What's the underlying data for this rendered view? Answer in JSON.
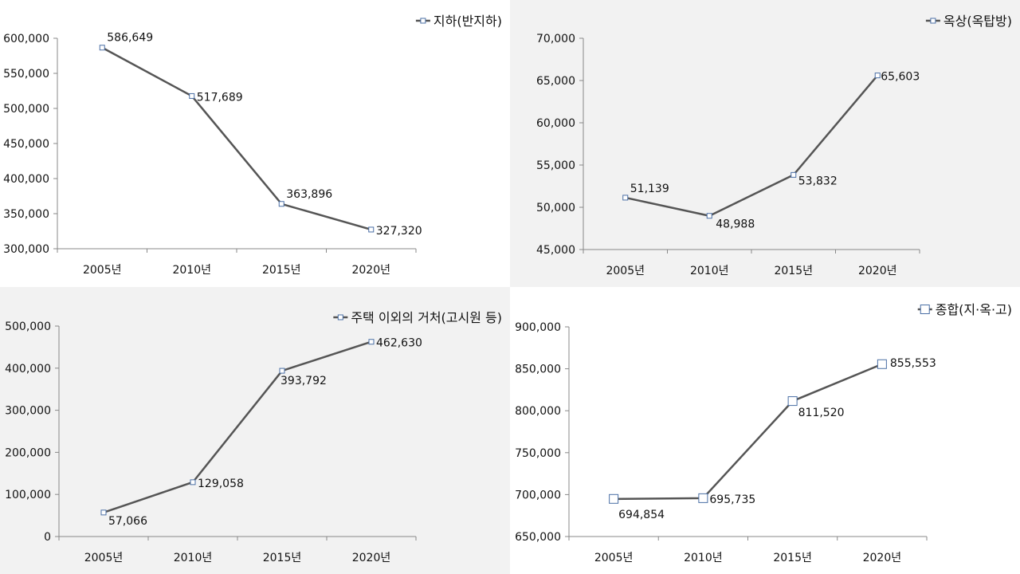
{
  "chart_data": [
    {
      "type": "line",
      "categories": [
        "2005년",
        "2010년",
        "2015년",
        "2020년"
      ],
      "series": [
        {
          "name": "지하(반지하)",
          "values": [
            586649,
            517689,
            363896,
            327320
          ]
        }
      ],
      "data_labels": [
        "586,649",
        "517,689",
        "363,896",
        "327,320"
      ],
      "ylim": [
        300000,
        600000
      ],
      "y_ticks": [
        300000,
        350000,
        400000,
        450000,
        500000,
        550000,
        600000
      ],
      "y_tick_labels": [
        "300,000",
        "350,000",
        "400,000",
        "450,000",
        "500,000",
        "550,000",
        "600,000"
      ],
      "legend_position": "top-right",
      "grid": false,
      "background": "#ffffff"
    },
    {
      "type": "line",
      "categories": [
        "2005년",
        "2010년",
        "2015년",
        "2020년"
      ],
      "series": [
        {
          "name": "옥상(옥탑방)",
          "values": [
            51139,
            48988,
            53832,
            65603
          ]
        }
      ],
      "data_labels": [
        "51,139",
        "48,988",
        "53,832",
        "65,603"
      ],
      "ylim": [
        45000,
        70000
      ],
      "y_ticks": [
        45000,
        50000,
        55000,
        60000,
        65000,
        70000
      ],
      "y_tick_labels": [
        "45,000",
        "50,000",
        "55,000",
        "60,000",
        "65,000",
        "70,000"
      ],
      "legend_position": "top-right",
      "grid": false,
      "background": "#f2f2f2"
    },
    {
      "type": "line",
      "categories": [
        "2005년",
        "2010년",
        "2015년",
        "2020년"
      ],
      "series": [
        {
          "name": "주택 이외의 거처(고시원 등)",
          "values": [
            57066,
            129058,
            393792,
            462630
          ]
        }
      ],
      "data_labels": [
        "57,066",
        "129,058",
        "393,792",
        "462,630"
      ],
      "ylim": [
        0,
        500000
      ],
      "y_ticks": [
        0,
        100000,
        200000,
        300000,
        400000,
        500000
      ],
      "y_tick_labels": [
        "0",
        "100,000",
        "200,000",
        "300,000",
        "400,000",
        "500,000"
      ],
      "legend_position": "top-right",
      "grid": false,
      "background": "#f2f2f2"
    },
    {
      "type": "line",
      "categories": [
        "2005년",
        "2010년",
        "2015년",
        "2020년"
      ],
      "series": [
        {
          "name": "종합(지·옥·고)",
          "values": [
            694854,
            695735,
            811520,
            855553
          ]
        }
      ],
      "data_labels": [
        "694,854",
        "695,735",
        "811,520",
        "855,553"
      ],
      "ylim": [
        650000,
        900000
      ],
      "y_ticks": [
        650000,
        700000,
        750000,
        800000,
        850000,
        900000
      ],
      "y_tick_labels": [
        "650,000",
        "700,000",
        "750,000",
        "800,000",
        "850,000",
        "900,000"
      ],
      "legend_position": "top-right",
      "grid": false,
      "background": "#ffffff"
    }
  ]
}
